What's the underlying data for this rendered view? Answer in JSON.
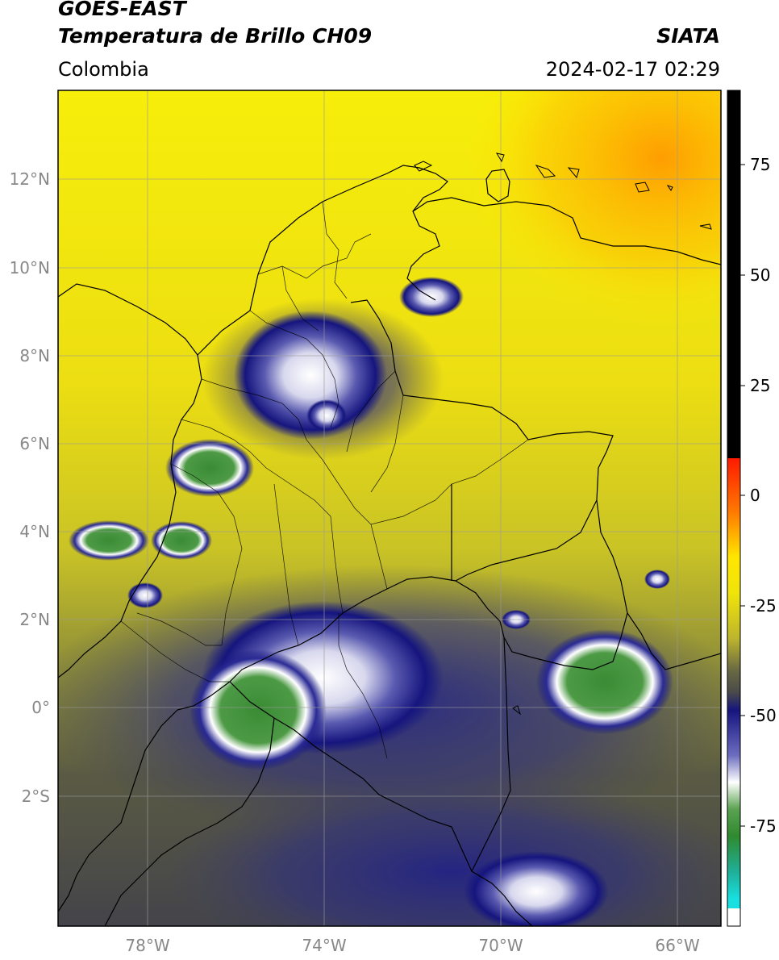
{
  "header": {
    "satellite": "GOES-EAST",
    "product": "Temperatura de Brillo CH09",
    "region": "Colombia",
    "source": "SIATA",
    "timestamp": "2024-02-17 02:29"
  },
  "axes": {
    "lat_labels": [
      "12°N",
      "10°N",
      "8°N",
      "6°N",
      "4°N",
      "2°N",
      "0°",
      "2°S"
    ],
    "lon_labels": [
      "78°W",
      "74°W",
      "70°W",
      "66°W"
    ]
  },
  "colorbar": {
    "tick_labels": [
      "75",
      "50",
      "25",
      "0",
      "-25",
      "-50",
      "-75"
    ],
    "colors": {
      "warm_top": "#000000",
      "red": "#e8120a",
      "orange": "#ff8c00",
      "yellow": "#ffee00",
      "olive": "#a8a838",
      "gray": "#4a4a4a",
      "navy": "#12127a",
      "white": "#ffffff",
      "green": "#2f8a2f",
      "teal": "#1fb09a",
      "cyan": "#18e0e0"
    }
  },
  "map": {
    "background_colors": [
      "#f7ee0a",
      "#ffc400",
      "#c9c326",
      "#5a5a44",
      "#1d1d85",
      "#3a8b35"
    ],
    "boundary_color": "#000000",
    "grid_color": "#9a9a9a"
  }
}
